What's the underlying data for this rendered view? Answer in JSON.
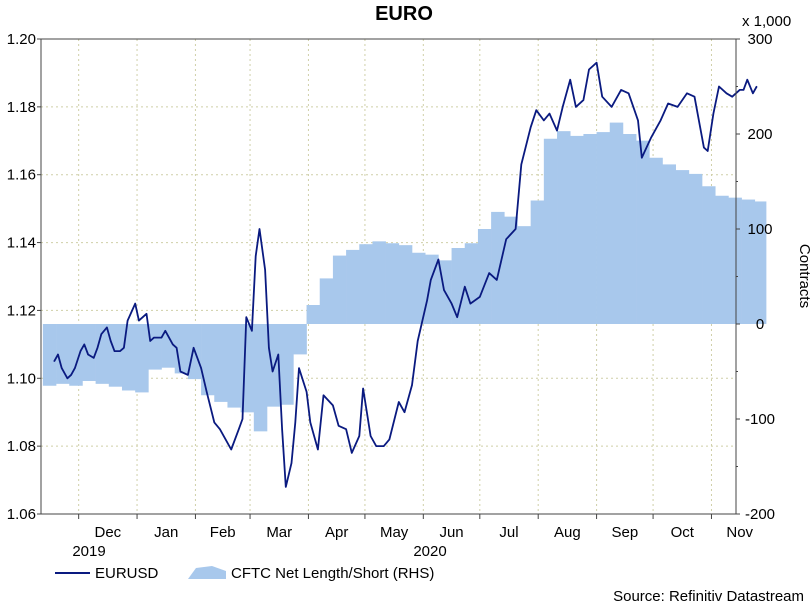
{
  "chart_data": {
    "type": "line",
    "title": "EURO",
    "left_axis": {
      "ylim": [
        1.06,
        1.2
      ],
      "ticks": [
        "1.06",
        "1.08",
        "1.10",
        "1.12",
        "1.14",
        "1.16",
        "1.18",
        "1.20"
      ]
    },
    "right_axis": {
      "label": "Contracts",
      "unit_note": "x 1,000",
      "ylim": [
        -200,
        300
      ],
      "ticks": [
        "-200",
        "-100",
        "0",
        "100",
        "200",
        "300"
      ]
    },
    "x_axis": {
      "months": [
        "Dec",
        "Jan",
        "Feb",
        "Mar",
        "Apr",
        "May",
        "Jun",
        "Jul",
        "Aug",
        "Sep",
        "Oct",
        "Nov"
      ],
      "years": [
        "2019",
        "2020"
      ]
    },
    "grid": true,
    "legend_position": "bottom-left",
    "source": "Source: Refinitiv Datastream",
    "colors": {
      "line": "#0a1a80",
      "area": "#a8c8ec",
      "grid": "#cfcfa8"
    },
    "series": [
      {
        "name": "EURUSD",
        "type": "line",
        "x": [
          "2019-11-18",
          "2019-11-20",
          "2019-11-22",
          "2019-11-25",
          "2019-11-27",
          "2019-11-29",
          "2019-12-02",
          "2019-12-04",
          "2019-12-06",
          "2019-12-09",
          "2019-12-11",
          "2019-12-13",
          "2019-12-16",
          "2019-12-18",
          "2019-12-20",
          "2019-12-23",
          "2019-12-25",
          "2019-12-27",
          "2019-12-31",
          "2020-01-02",
          "2020-01-06",
          "2020-01-08",
          "2020-01-10",
          "2020-01-14",
          "2020-01-16",
          "2020-01-20",
          "2020-01-22",
          "2020-01-24",
          "2020-01-28",
          "2020-01-31",
          "2020-02-04",
          "2020-02-07",
          "2020-02-11",
          "2020-02-14",
          "2020-02-17",
          "2020-02-20",
          "2020-02-24",
          "2020-02-26",
          "2020-02-28",
          "2020-03-02",
          "2020-03-04",
          "2020-03-06",
          "2020-03-09",
          "2020-03-11",
          "2020-03-13",
          "2020-03-16",
          "2020-03-18",
          "2020-03-20",
          "2020-03-23",
          "2020-03-25",
          "2020-03-27",
          "2020-03-31",
          "2020-04-02",
          "2020-04-06",
          "2020-04-09",
          "2020-04-14",
          "2020-04-17",
          "2020-04-21",
          "2020-04-24",
          "2020-04-28",
          "2020-04-30",
          "2020-05-04",
          "2020-05-07",
          "2020-05-11",
          "2020-05-14",
          "2020-05-19",
          "2020-05-22",
          "2020-05-26",
          "2020-05-29",
          "2020-06-03",
          "2020-06-05",
          "2020-06-09",
          "2020-06-12",
          "2020-06-16",
          "2020-06-19",
          "2020-06-23",
          "2020-06-26",
          "2020-07-01",
          "2020-07-06",
          "2020-07-10",
          "2020-07-15",
          "2020-07-20",
          "2020-07-23",
          "2020-07-28",
          "2020-07-31",
          "2020-08-04",
          "2020-08-07",
          "2020-08-11",
          "2020-08-14",
          "2020-08-18",
          "2020-08-21",
          "2020-08-25",
          "2020-08-28",
          "2020-09-01",
          "2020-09-04",
          "2020-09-09",
          "2020-09-14",
          "2020-09-18",
          "2020-09-23",
          "2020-09-25",
          "2020-09-30",
          "2020-10-05",
          "2020-10-09",
          "2020-10-14",
          "2020-10-19",
          "2020-10-23",
          "2020-10-28",
          "2020-10-30",
          "2020-11-02",
          "2020-11-05",
          "2020-11-09",
          "2020-11-12",
          "2020-11-16",
          "2020-11-18",
          "2020-11-20",
          "2020-11-23",
          "2020-11-25"
        ],
        "values": [
          1.105,
          1.107,
          1.103,
          1.1,
          1.101,
          1.103,
          1.108,
          1.11,
          1.107,
          1.106,
          1.109,
          1.113,
          1.115,
          1.111,
          1.108,
          1.108,
          1.109,
          1.117,
          1.122,
          1.117,
          1.119,
          1.111,
          1.112,
          1.112,
          1.114,
          1.11,
          1.109,
          1.102,
          1.101,
          1.109,
          1.103,
          1.096,
          1.087,
          1.085,
          1.082,
          1.079,
          1.085,
          1.088,
          1.118,
          1.114,
          1.136,
          1.144,
          1.132,
          1.109,
          1.102,
          1.107,
          1.085,
          1.068,
          1.075,
          1.087,
          1.103,
          1.096,
          1.087,
          1.079,
          1.095,
          1.092,
          1.086,
          1.085,
          1.078,
          1.083,
          1.097,
          1.083,
          1.08,
          1.08,
          1.082,
          1.093,
          1.09,
          1.098,
          1.111,
          1.123,
          1.129,
          1.135,
          1.126,
          1.122,
          1.118,
          1.127,
          1.122,
          1.124,
          1.131,
          1.129,
          1.141,
          1.144,
          1.163,
          1.174,
          1.179,
          1.176,
          1.178,
          1.173,
          1.18,
          1.188,
          1.18,
          1.182,
          1.191,
          1.193,
          1.183,
          1.18,
          1.185,
          1.184,
          1.176,
          1.165,
          1.171,
          1.176,
          1.181,
          1.18,
          1.184,
          1.183,
          1.168,
          1.167,
          1.178,
          1.186,
          1.184,
          1.183,
          1.185,
          1.185,
          1.188,
          1.184,
          1.186
        ]
      },
      {
        "name": "CFTC Net Length/Short (RHS)",
        "type": "area",
        "x": [
          "2019-11-12",
          "2019-11-19",
          "2019-11-26",
          "2019-12-03",
          "2019-12-10",
          "2019-12-17",
          "2019-12-24",
          "2019-12-31",
          "2020-01-07",
          "2020-01-14",
          "2020-01-21",
          "2020-01-28",
          "2020-02-04",
          "2020-02-11",
          "2020-02-18",
          "2020-02-25",
          "2020-03-03",
          "2020-03-10",
          "2020-03-17",
          "2020-03-24",
          "2020-03-31",
          "2020-04-07",
          "2020-04-14",
          "2020-04-21",
          "2020-04-28",
          "2020-05-05",
          "2020-05-12",
          "2020-05-19",
          "2020-05-26",
          "2020-06-02",
          "2020-06-09",
          "2020-06-16",
          "2020-06-23",
          "2020-06-30",
          "2020-07-07",
          "2020-07-14",
          "2020-07-21",
          "2020-07-28",
          "2020-08-04",
          "2020-08-11",
          "2020-08-18",
          "2020-08-25",
          "2020-09-01",
          "2020-09-08",
          "2020-09-15",
          "2020-09-22",
          "2020-09-29",
          "2020-10-06",
          "2020-10-13",
          "2020-10-20",
          "2020-10-27",
          "2020-11-03",
          "2020-11-10",
          "2020-11-17",
          "2020-11-24"
        ],
        "values": [
          -65,
          -63,
          -65,
          -60,
          -63,
          -66,
          -70,
          -72,
          -48,
          -46,
          -52,
          -58,
          -75,
          -82,
          -88,
          -93,
          -113,
          -87,
          -85,
          -32,
          20,
          48,
          72,
          78,
          84,
          87,
          85,
          83,
          75,
          73,
          67,
          80,
          85,
          100,
          118,
          113,
          103,
          130,
          195,
          203,
          198,
          200,
          202,
          212,
          200,
          193,
          175,
          168,
          162,
          158,
          145,
          135,
          133,
          131,
          129
        ]
      }
    ]
  }
}
